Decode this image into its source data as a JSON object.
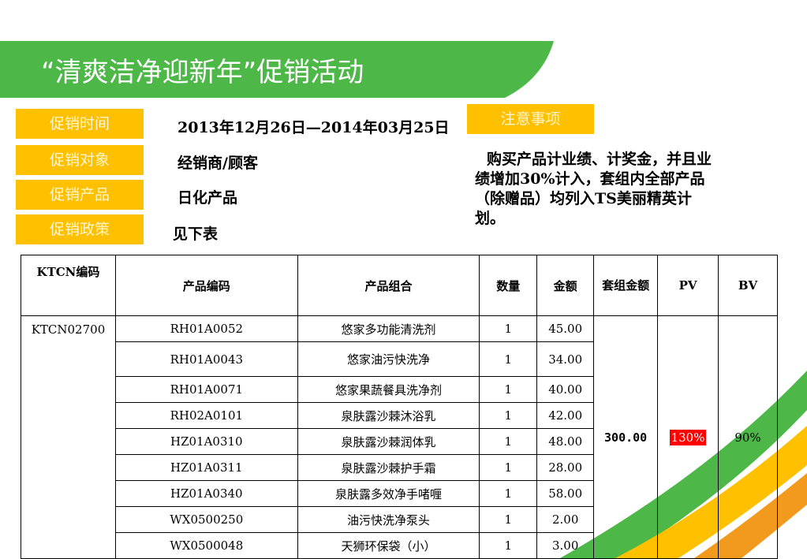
{
  "header": {
    "title": "“清爽洁净迎新年”促销活动",
    "colors": {
      "green": "#4db848",
      "yellow": "#ffc000",
      "orange": "#f29a1d"
    }
  },
  "info": [
    {
      "label": "促销时间",
      "value": "2013年12月26日—2014年03月25日"
    },
    {
      "label": "促销对象",
      "value": "经销商/顾客"
    },
    {
      "label": "促销产品",
      "value": "日化产品"
    },
    {
      "label": "促销政策",
      "value": "见下表"
    }
  ],
  "notice": {
    "label": "注意事项",
    "text": "购买产品计业绩、计奖金，并且业绩增加30%计入，套组内全部产品（除赠品）均列入TS美丽精英计划。"
  },
  "table": {
    "headers": [
      "KTCN编码",
      "产品编码",
      "产品组合",
      "数量",
      "金额",
      "套组金额",
      "PV",
      "BV"
    ],
    "ktcn_code": "KTCN02700",
    "set_amount": "300.00",
    "pv": "130%",
    "bv": "90%",
    "rows": [
      {
        "code": "RH01A0052",
        "name": "悠家多功能清洗剂",
        "qty": "1",
        "amount": "45.00"
      },
      {
        "code": "RH01A0043",
        "name": "悠家油污快洗净",
        "qty": "1",
        "amount": "34.00"
      },
      {
        "code": "RH01A0071",
        "name": "悠家果蔬餐具洗净剂",
        "qty": "1",
        "amount": "40.00"
      },
      {
        "code": "RH02A0101",
        "name": "泉肤露沙棘沐浴乳",
        "qty": "1",
        "amount": "42.00"
      },
      {
        "code": "HZ01A0310",
        "name": "泉肤露沙棘润体乳",
        "qty": "1",
        "amount": "48.00"
      },
      {
        "code": "HZ01A0311",
        "name": "泉肤露沙棘护手霜",
        "qty": "1",
        "amount": "28.00"
      },
      {
        "code": "HZ01A0340",
        "name": "泉肤露多效净手啫喱",
        "qty": "1",
        "amount": "58.00"
      },
      {
        "code": "WX0500250",
        "name": "油污快洗净泵头",
        "qty": "1",
        "amount": "2.00"
      },
      {
        "code": "WX0500048",
        "name": "天狮环保袋（小）",
        "qty": "1",
        "amount": "3.00"
      }
    ]
  }
}
